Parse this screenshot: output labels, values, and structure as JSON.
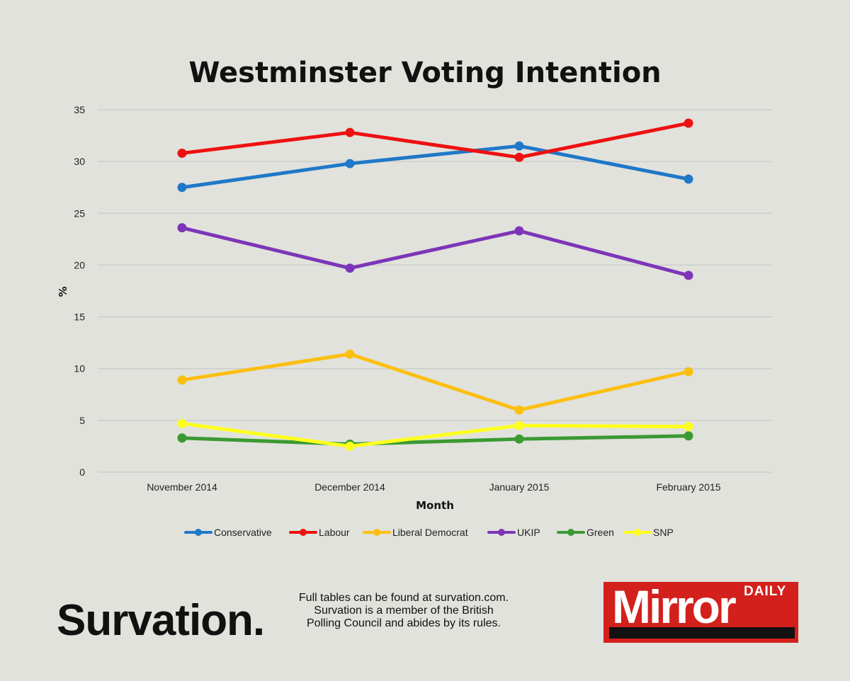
{
  "colors": {
    "background": "#e1e2dc",
    "gridline": "#c4c4c4",
    "logo_red": "#d4201c"
  },
  "chart_data": {
    "type": "line",
    "title": "Westminster Voting Intention",
    "xlabel": "Month",
    "ylabel": "%",
    "ylim": [
      0,
      35
    ],
    "yticks": [
      0,
      5,
      10,
      15,
      20,
      25,
      30,
      35
    ],
    "grid": true,
    "legend_position": "bottom",
    "categories": [
      "November 2014",
      "December 2014",
      "January 2015",
      "February 2015"
    ],
    "series": [
      {
        "name": "Conservative",
        "color": "#1f78c8",
        "values": [
          27.5,
          29.8,
          31.5,
          28.3
        ]
      },
      {
        "name": "Labour",
        "color": "#ee1111",
        "values": [
          30.8,
          32.8,
          30.4,
          33.7
        ]
      },
      {
        "name": "Liberal Democrat",
        "color": "#fcbf10",
        "values": [
          8.9,
          11.4,
          6.0,
          9.7
        ]
      },
      {
        "name": "UKIP",
        "color": "#7d35b8",
        "values": [
          23.6,
          19.7,
          23.3,
          19.0
        ]
      },
      {
        "name": "Green",
        "color": "#3a9a32",
        "values": [
          3.3,
          2.7,
          3.2,
          3.5
        ]
      },
      {
        "name": "SNP",
        "color": "#ffff1e",
        "values": [
          4.7,
          2.5,
          4.5,
          4.4
        ]
      }
    ]
  },
  "branding": {
    "survation": "Survation.",
    "footnote_lines": [
      "Full tables can be found at survation.com.",
      "Survation is a member of the British",
      "Polling Council and abides by its rules."
    ],
    "logo_small": "DAILY",
    "logo_large": "Mirror"
  }
}
